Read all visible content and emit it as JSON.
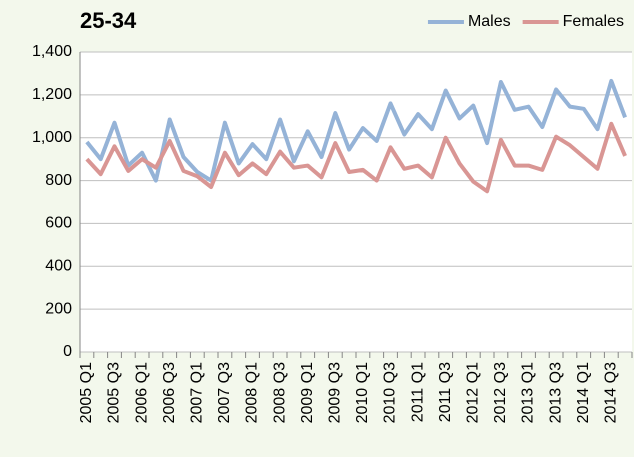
{
  "chart_data": {
    "type": "line",
    "title": "25-34",
    "categories": [
      "2005 Q1",
      null,
      "2005 Q3",
      null,
      "2006 Q1",
      null,
      "2006 Q3",
      null,
      "2007 Q1",
      null,
      "2007 Q3",
      null,
      "2008 Q1",
      null,
      "2008 Q3",
      null,
      "2009 Q1",
      null,
      "2009 Q3",
      null,
      "2010 Q1",
      null,
      "2010 Q3",
      null,
      "2011 Q1",
      null,
      "2011 Q3",
      null,
      "2012 Q1",
      null,
      "2012 Q3",
      null,
      "2013 Q1",
      null,
      "2013 Q3",
      null,
      "2014 Q1",
      null,
      "2014 Q3",
      null
    ],
    "series": [
      {
        "name": "Males",
        "color": "#95b3d7",
        "values": [
          980,
          900,
          1070,
          870,
          930,
          800,
          1085,
          910,
          840,
          800,
          1070,
          880,
          970,
          900,
          1085,
          890,
          1030,
          910,
          1115,
          945,
          1045,
          985,
          1160,
          1015,
          1110,
          1040,
          1220,
          1090,
          1150,
          975,
          1260,
          1130,
          1145,
          1050,
          1225,
          1145,
          1135,
          1040,
          1265,
          1095
        ]
      },
      {
        "name": "Females",
        "color": "#d99694",
        "values": [
          900,
          830,
          960,
          845,
          900,
          860,
          985,
          845,
          820,
          770,
          930,
          825,
          880,
          830,
          935,
          860,
          870,
          815,
          975,
          840,
          850,
          800,
          955,
          855,
          870,
          815,
          1000,
          880,
          795,
          750,
          990,
          870,
          870,
          850,
          1005,
          965,
          910,
          855,
          1065,
          915
        ]
      }
    ],
    "ylim": [
      0,
      1400
    ],
    "yticks": [
      0,
      200,
      400,
      600,
      800,
      {
        "value": 1000,
        "label": "1,000"
      },
      {
        "value": 1200,
        "label": "1,200"
      },
      {
        "value": 1400,
        "label": "1,400"
      }
    ],
    "grid": true,
    "legend": "top-right"
  }
}
